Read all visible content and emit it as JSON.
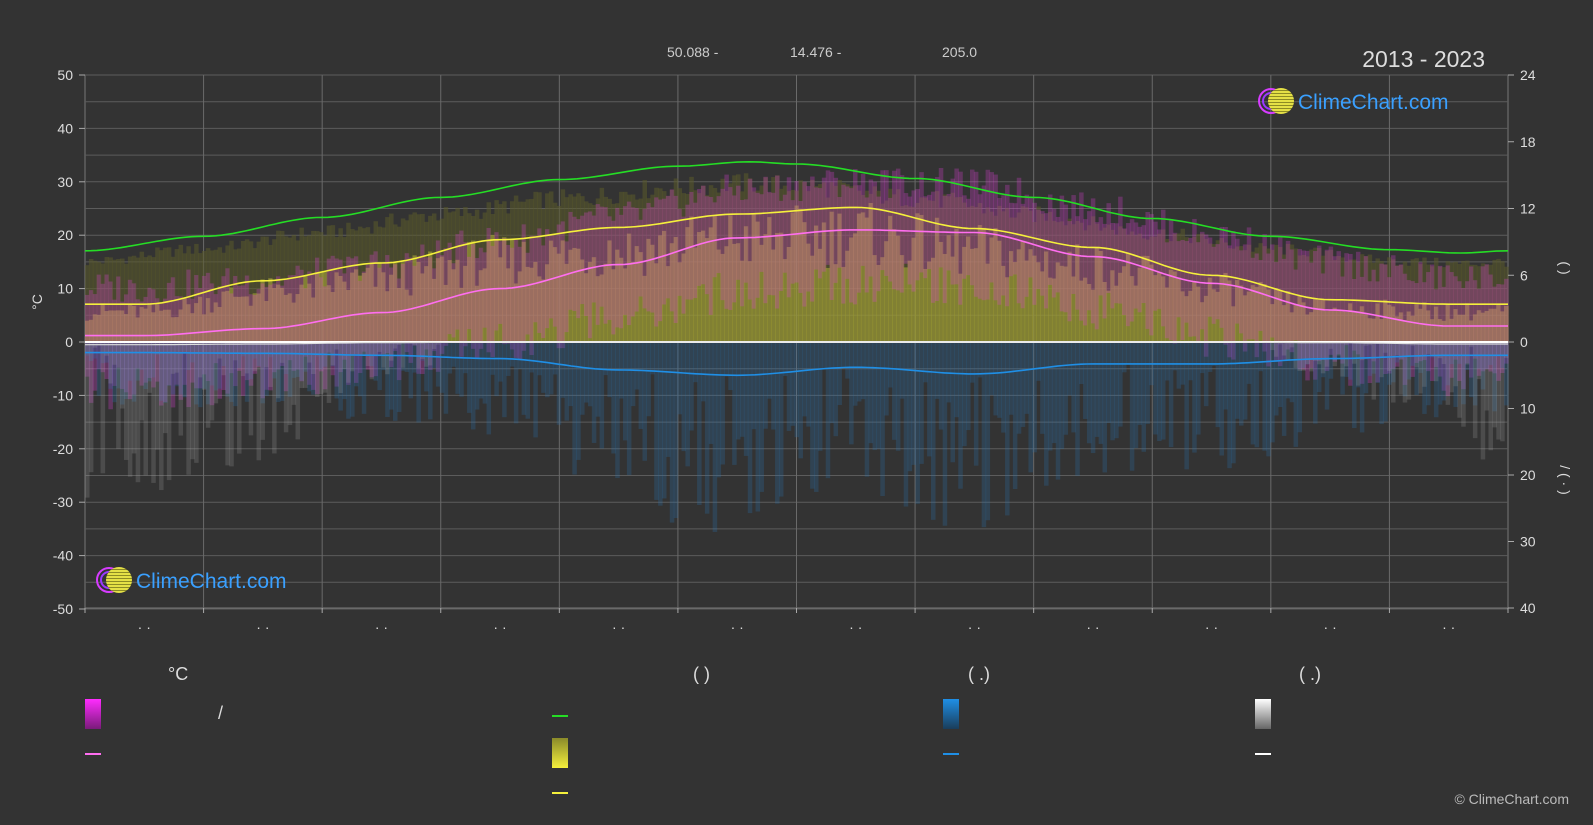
{
  "header": {
    "coord_lat": "50.088 -",
    "coord_lon": "14.476 -",
    "coord_elev": "205.0",
    "years": "2013 - 2023"
  },
  "brand": {
    "logo_text": "ClimeChart.com",
    "copyright": "© ClimeChart.com"
  },
  "axes": {
    "left_unit": "°C",
    "right_upper_label": "(     )",
    "right_lower_label": "/  (  ·  )",
    "month_tick_label": "· ·"
  },
  "legend": {
    "col1_title": "°C",
    "col1_item1": "/",
    "col2_title": "(          )",
    "col3_title": "(   .)",
    "col4_title": "(   .)"
  },
  "colors": {
    "background": "#333333",
    "daylight": "#25dd25",
    "sunshine_line": "#f5f03c",
    "sunshine_fill": "#c8c63a",
    "temp_line": "#ff6ef0",
    "temp_fill": "#e040d8",
    "precip_line": "#1f8fe6",
    "precip_fill": "#2a6ea8",
    "snow_fill": "#a8a8a8",
    "zero_line": "#ffffff"
  },
  "chart_data": {
    "type": "line",
    "x_unit": "month",
    "xlim": [
      0,
      12
    ],
    "ylim_left": [
      -50,
      50
    ],
    "yticks_left": [
      50,
      40,
      30,
      20,
      10,
      0,
      -10,
      -20,
      -30,
      -40,
      -50
    ],
    "ylim_right_upper": [
      0,
      24
    ],
    "yticks_right_upper": [
      24,
      18,
      12,
      6,
      0
    ],
    "yticks_right_lower": [
      10,
      20,
      30,
      40
    ],
    "grid": true,
    "months": [
      0.5,
      1.5,
      2.5,
      3.5,
      4.5,
      5.5,
      6.5,
      7.5,
      8.5,
      9.5,
      10.5,
      11.5
    ],
    "series": [
      {
        "key": "daylight",
        "unit": "hours",
        "x": [
          0,
          1,
          2,
          3,
          4,
          5,
          5.6,
          6,
          7,
          8,
          9,
          10,
          11,
          11.6,
          12
        ],
        "values": [
          8.2,
          9.5,
          11.2,
          13.0,
          14.6,
          15.8,
          16.2,
          16.0,
          14.7,
          13.0,
          11.1,
          9.5,
          8.3,
          8.0,
          8.2
        ]
      },
      {
        "key": "sunshine",
        "unit": "hours",
        "x": [
          0,
          0.5,
          1.5,
          2.5,
          3.5,
          4.5,
          5.5,
          6.5,
          7.5,
          8.5,
          9.5,
          10.5,
          11.5,
          12
        ],
        "values": [
          3.4,
          3.4,
          5.5,
          7.1,
          9.2,
          10.3,
          11.5,
          12.1,
          10.2,
          8.5,
          6.0,
          3.8,
          3.4,
          3.4
        ]
      },
      {
        "key": "temperature",
        "unit": "°C",
        "x": [
          0,
          0.5,
          1.5,
          2.5,
          3.5,
          4.5,
          5.5,
          6.5,
          7.5,
          8.5,
          9.5,
          10.5,
          11.5,
          12
        ],
        "values": [
          1.2,
          1.2,
          2.5,
          5.5,
          10.0,
          14.5,
          19.5,
          21.0,
          20.5,
          16.0,
          11.0,
          6.0,
          3.0,
          3.0
        ]
      },
      {
        "key": "precipitation",
        "unit": "mm/day",
        "x": [
          0,
          0.5,
          1.5,
          2.5,
          3.5,
          4.5,
          5.5,
          6.5,
          7.5,
          8.5,
          9.5,
          10.5,
          11.5,
          12
        ],
        "values": [
          1.6,
          1.6,
          1.7,
          2.0,
          2.5,
          4.2,
          5.0,
          3.8,
          4.8,
          3.3,
          3.3,
          2.5,
          2.0,
          2.0
        ]
      },
      {
        "key": "snow",
        "unit": "mm/day",
        "x": [
          0,
          0.5,
          1.5,
          2.5,
          3.5,
          4.5,
          5.5,
          6.5,
          7.5,
          8.5,
          9.5,
          10.5,
          11.5,
          12
        ],
        "values": [
          0.4,
          0.4,
          0.3,
          0.1,
          0,
          0,
          0,
          0,
          0,
          0,
          0,
          0.1,
          0.3,
          0.3
        ]
      }
    ]
  }
}
